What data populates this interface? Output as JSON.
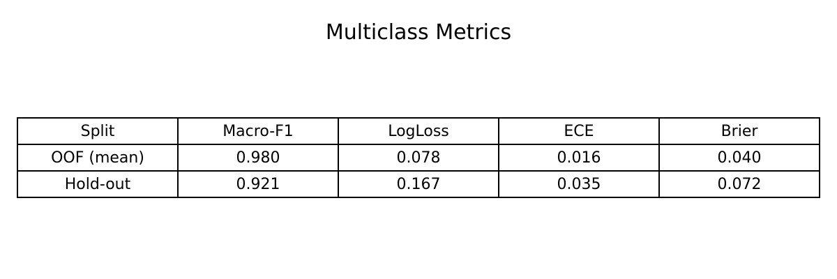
{
  "chart_data": {
    "type": "table",
    "title": "Multiclass Metrics",
    "columns": [
      "Split",
      "Macro-F1",
      "LogLoss",
      "ECE",
      "Brier"
    ],
    "rows": [
      [
        "OOF (mean)",
        "0.980",
        "0.078",
        "0.016",
        "0.040"
      ],
      [
        "Hold-out",
        "0.921",
        "0.167",
        "0.035",
        "0.072"
      ]
    ]
  }
}
